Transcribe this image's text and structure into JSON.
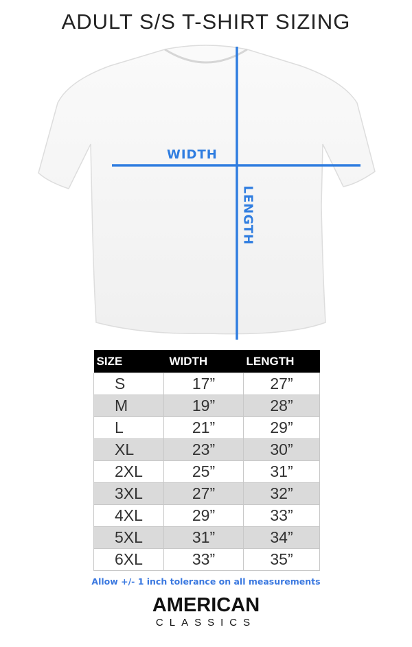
{
  "title": "ADULT S/S T-SHIRT SIZING",
  "diagram": {
    "width_label": "WIDTH",
    "length_label": "LENGTH",
    "line_color": "#2f7de0"
  },
  "table": {
    "headers": [
      "SIZE",
      "WIDTH",
      "LENGTH"
    ],
    "rows": [
      [
        "S",
        "17”",
        "27”"
      ],
      [
        "M",
        "19”",
        "28”"
      ],
      [
        "L",
        "21”",
        "29”"
      ],
      [
        "XL",
        "23”",
        "30”"
      ],
      [
        "2XL",
        "25”",
        "31”"
      ],
      [
        "3XL",
        "27”",
        "32”"
      ],
      [
        "4XL",
        "29”",
        "33”"
      ],
      [
        "5XL",
        "31”",
        "34”"
      ],
      [
        "6XL",
        "33”",
        "35”"
      ]
    ]
  },
  "note": "Allow +/- 1 inch tolerance on all measurements",
  "brand": {
    "line1": "AMERICAN",
    "line2": "CLASSICS"
  }
}
